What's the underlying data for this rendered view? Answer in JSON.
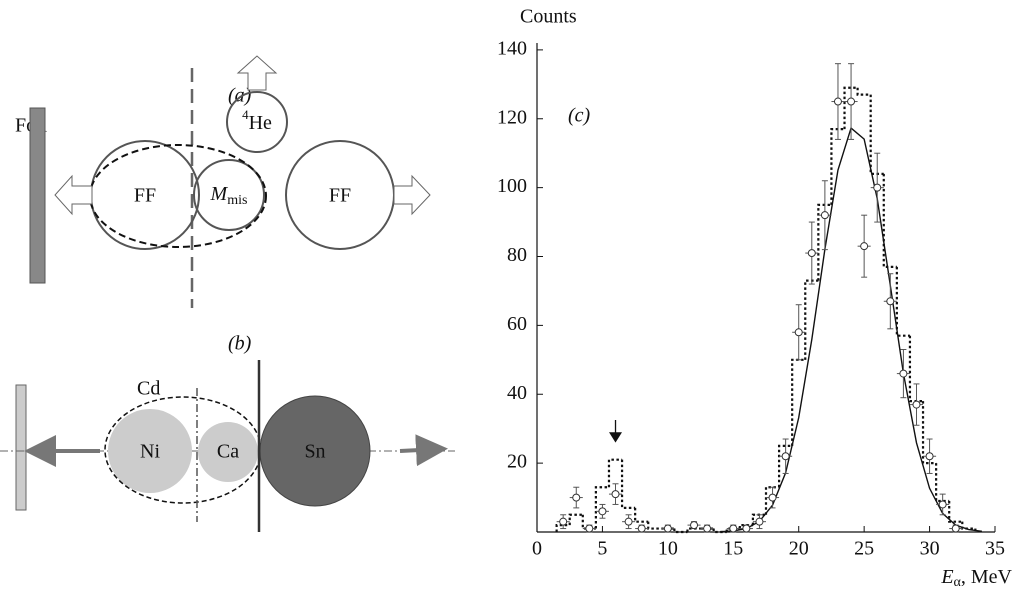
{
  "diagram_a": {
    "label": "(a)",
    "foil": "Foil",
    "helium": {
      "mass": "4",
      "symbol": "He"
    },
    "left_fragment": "FF",
    "missing": {
      "symbol": "M",
      "sub": "mis"
    },
    "right_fragment": "FF"
  },
  "diagram_b": {
    "label": "(b)",
    "parent": "Cd",
    "left": "Ni",
    "middle": "Ca",
    "right": "Sn"
  },
  "chart_data": {
    "type": "scatter",
    "panel_label": "(c)",
    "ylabel": "Counts",
    "xlabel": {
      "symbol": "E",
      "sub": "α",
      "unit": ", MeV"
    },
    "xlim": [
      0,
      35
    ],
    "xticks": [
      0,
      5,
      10,
      15,
      20,
      25,
      30,
      35
    ],
    "ylim": [
      0,
      142
    ],
    "yticks": [
      20,
      40,
      60,
      80,
      100,
      120,
      140
    ],
    "points": {
      "x": [
        2,
        3,
        4,
        5,
        6,
        7,
        8,
        10,
        12,
        13,
        15,
        16,
        17,
        18,
        19,
        20,
        21,
        22,
        23,
        24,
        25,
        26,
        27,
        28,
        29,
        30,
        31,
        32
      ],
      "values": [
        3,
        10,
        1,
        6,
        11,
        3,
        1,
        1,
        2,
        1,
        1,
        1,
        3,
        10,
        22,
        58,
        81,
        92,
        125,
        125,
        83,
        100,
        67,
        46,
        37,
        22,
        8,
        1
      ],
      "errors": [
        2,
        3,
        1,
        2,
        3,
        2,
        1,
        1,
        1,
        1,
        1,
        1,
        2,
        3,
        5,
        8,
        9,
        10,
        11,
        11,
        9,
        10,
        8,
        7,
        6,
        5,
        3,
        1
      ]
    },
    "xerr": 0.5,
    "histogram": {
      "bins": [
        1.5,
        2.5,
        3.5,
        4.5,
        5.5,
        6.5,
        7.5,
        8.5,
        9.5,
        10.5,
        11.5,
        12.5,
        13.5,
        14.5,
        15.5,
        16.5,
        17.5,
        18.5,
        19.5,
        20.5,
        21.5,
        22.5,
        23.5,
        24.5,
        25.5,
        26.5,
        27.5,
        28.5,
        29.5,
        30.5,
        31.5,
        32.5,
        33.5
      ],
      "counts": [
        2,
        5,
        1,
        13,
        21,
        7,
        3,
        1,
        1,
        0,
        1,
        1,
        0,
        1,
        2,
        5,
        13,
        25,
        50,
        73,
        95,
        117,
        129,
        127,
        104,
        77,
        57,
        38,
        20,
        9,
        3,
        1
      ]
    },
    "fit": {
      "x": [
        14,
        15,
        16,
        17,
        18,
        19,
        20,
        21,
        22,
        23,
        24,
        25,
        26,
        27,
        28,
        29,
        30,
        31,
        32,
        33,
        34
      ],
      "values": [
        0.1,
        0.3,
        1.0,
        3.1,
        7.8,
        17.2,
        33.2,
        55.9,
        82.1,
        105.1,
        117.3,
        114.1,
        96.8,
        71.6,
        46.1,
        25.9,
        12.7,
        5.4,
        2.0,
        0.7,
        0.2
      ]
    },
    "arrow": {
      "x": 6
    }
  }
}
